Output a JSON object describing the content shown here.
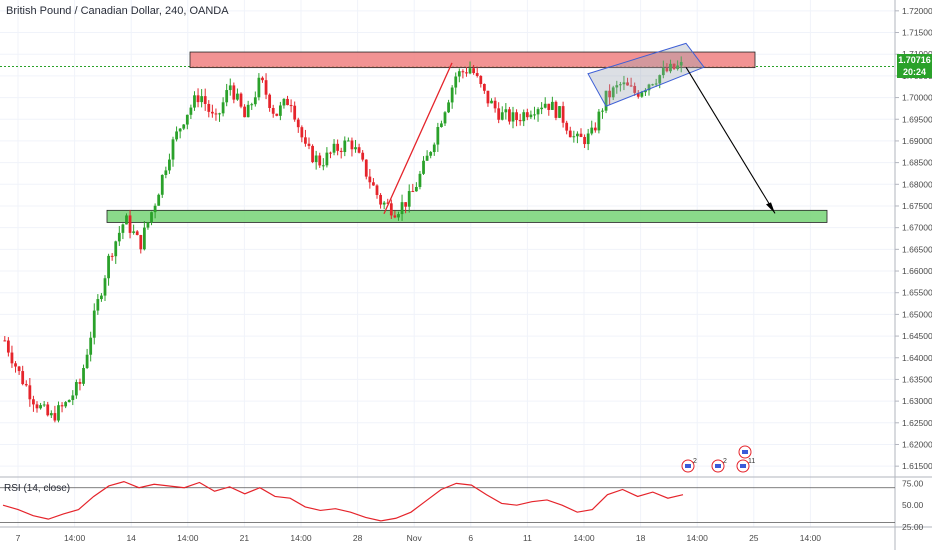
{
  "title": "British Pound / Canadian Dollar, 240, OANDA",
  "rsi_label": "RSI (14, close)",
  "last_price": "1.70716",
  "countdown": "20:24",
  "colors": {
    "up": "#2aa12a",
    "down": "#e5242b",
    "resistance_fill": "#f08080",
    "support_fill": "#7dd67d",
    "rsi_line": "#e5242b",
    "channel": "#3d5fd6"
  },
  "event_markers": [
    {
      "label": "2",
      "icon": "flag-icon"
    },
    {
      "label": "2",
      "icon": "flag-icon"
    },
    {
      "label": "11",
      "icon": "flag-icon"
    },
    {
      "label": "",
      "icon": "flag-icon"
    }
  ],
  "chart_data": {
    "type": "candlestick",
    "symbol": "British Pound / Canadian Dollar",
    "interval": "240",
    "ylim": [
      1.6125,
      1.7225
    ],
    "y_ticks": [
      "1.72000",
      "1.71500",
      "1.71000",
      "1.70500",
      "1.70000",
      "1.69500",
      "1.69000",
      "1.68500",
      "1.68000",
      "1.67500",
      "1.67000",
      "1.66500",
      "1.66000",
      "1.65500",
      "1.65000",
      "1.64500",
      "1.64000",
      "1.63500",
      "1.63000",
      "1.62500",
      "1.62000",
      "1.61500"
    ],
    "x_ticks": [
      "7",
      "14:00",
      "14",
      "14:00",
      "21",
      "14:00",
      "28",
      "Nov",
      "6",
      "11",
      "14:00",
      "18",
      "14:00",
      "25",
      "14:00"
    ],
    "close_path": [
      1.644,
      1.636,
      1.63,
      1.626,
      1.629,
      1.634,
      1.65,
      1.664,
      1.672,
      1.666,
      1.676,
      1.688,
      1.696,
      1.701,
      1.694,
      1.703,
      1.695,
      1.704,
      1.696,
      1.7,
      1.688,
      1.685,
      1.688,
      1.69,
      1.683,
      1.676,
      1.674,
      1.677,
      1.685,
      1.695,
      1.705,
      1.707,
      1.7,
      1.696,
      1.695,
      1.6975,
      1.699,
      1.696,
      1.69,
      1.691,
      1.7,
      1.703,
      1.701,
      1.704,
      1.706,
      1.7072
    ],
    "resistance_zone": [
      1.7069,
      1.7105
    ],
    "support_zone": [
      1.6712,
      1.674
    ],
    "annotations": [
      "rising wedge channel",
      "projected drop to support zone"
    ],
    "rsi": {
      "period": 14,
      "ylim": [
        25,
        80
      ],
      "levels": [
        70,
        30
      ],
      "y_ticks": [
        "75.00",
        "50.00",
        "25.00"
      ],
      "values": [
        50,
        45,
        38,
        34,
        40,
        45,
        60,
        72,
        77,
        70,
        74,
        72,
        70,
        76,
        66,
        71,
        63,
        70,
        60,
        58,
        48,
        44,
        46,
        42,
        36,
        32,
        35,
        42,
        55,
        68,
        75,
        73,
        62,
        52,
        50,
        54,
        56,
        50,
        42,
        45,
        62,
        68,
        60,
        65,
        58,
        62
      ]
    }
  }
}
